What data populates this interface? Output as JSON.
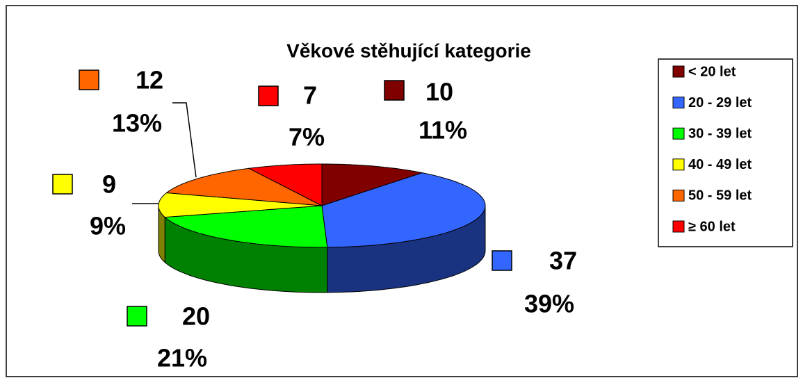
{
  "chart_data": {
    "type": "pie3d",
    "title": "Věkové stěhující kategorie",
    "categories": [
      "< 20 let",
      "20 - 29 let",
      "30 - 39 let",
      "40 - 49 let",
      "50 - 59 let",
      "≥ 60 let"
    ],
    "values": [
      10,
      37,
      20,
      9,
      12,
      7
    ],
    "percent_labels": [
      "11%",
      "39%",
      "21%",
      "9%",
      "13%",
      "7%"
    ],
    "colors": [
      "#800000",
      "#3366ff",
      "#00ff00",
      "#ffff00",
      "#ff6600",
      "#ff0000"
    ],
    "legend": "right"
  }
}
